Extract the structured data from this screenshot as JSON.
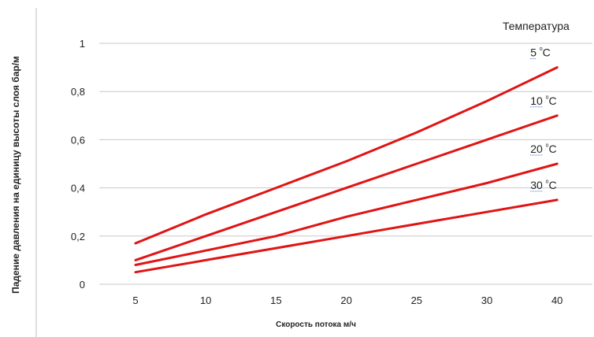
{
  "chart_data": {
    "type": "line",
    "ylabel": "Падение давления на единицу высоты слоя бар/м",
    "xlabel": "Скорость потока м/ч",
    "legend_title": "Температура",
    "x_ticks": [
      "5",
      "10",
      "15",
      "20",
      "25",
      "30",
      "40"
    ],
    "y_ticks": [
      "0",
      "0,2",
      "0,4",
      "0,6",
      "0,8",
      "1"
    ],
    "y_tick_values": [
      0,
      0.2,
      0.4,
      0.6,
      0.8,
      1
    ],
    "ylim": [
      0,
      1
    ],
    "grid": true,
    "line_color": "#e01414",
    "series": [
      {
        "name": "5 ᵒC",
        "label_main": "5 ",
        "label_sup": "ᵒ",
        "label_end": "C",
        "values": [
          0.17,
          0.29,
          0.4,
          0.51,
          0.63,
          0.76,
          0.9
        ]
      },
      {
        "name": "10 ᵒC",
        "label_main": "10 ",
        "label_sup": "ᵒ",
        "label_end": "C",
        "values": [
          0.1,
          0.2,
          0.3,
          0.4,
          0.5,
          0.6,
          0.7
        ]
      },
      {
        "name": "20 ᵒC",
        "label_main": "20 ",
        "label_sup": "ᵒ",
        "label_end": "C",
        "values": [
          0.08,
          0.14,
          0.2,
          0.28,
          0.35,
          0.42,
          0.5
        ]
      },
      {
        "name": "30 ᵒC",
        "label_main": "30 ",
        "label_sup": "ᵒ",
        "label_end": "C",
        "values": [
          0.05,
          0.1,
          0.15,
          0.2,
          0.25,
          0.3,
          0.35
        ]
      }
    ]
  }
}
